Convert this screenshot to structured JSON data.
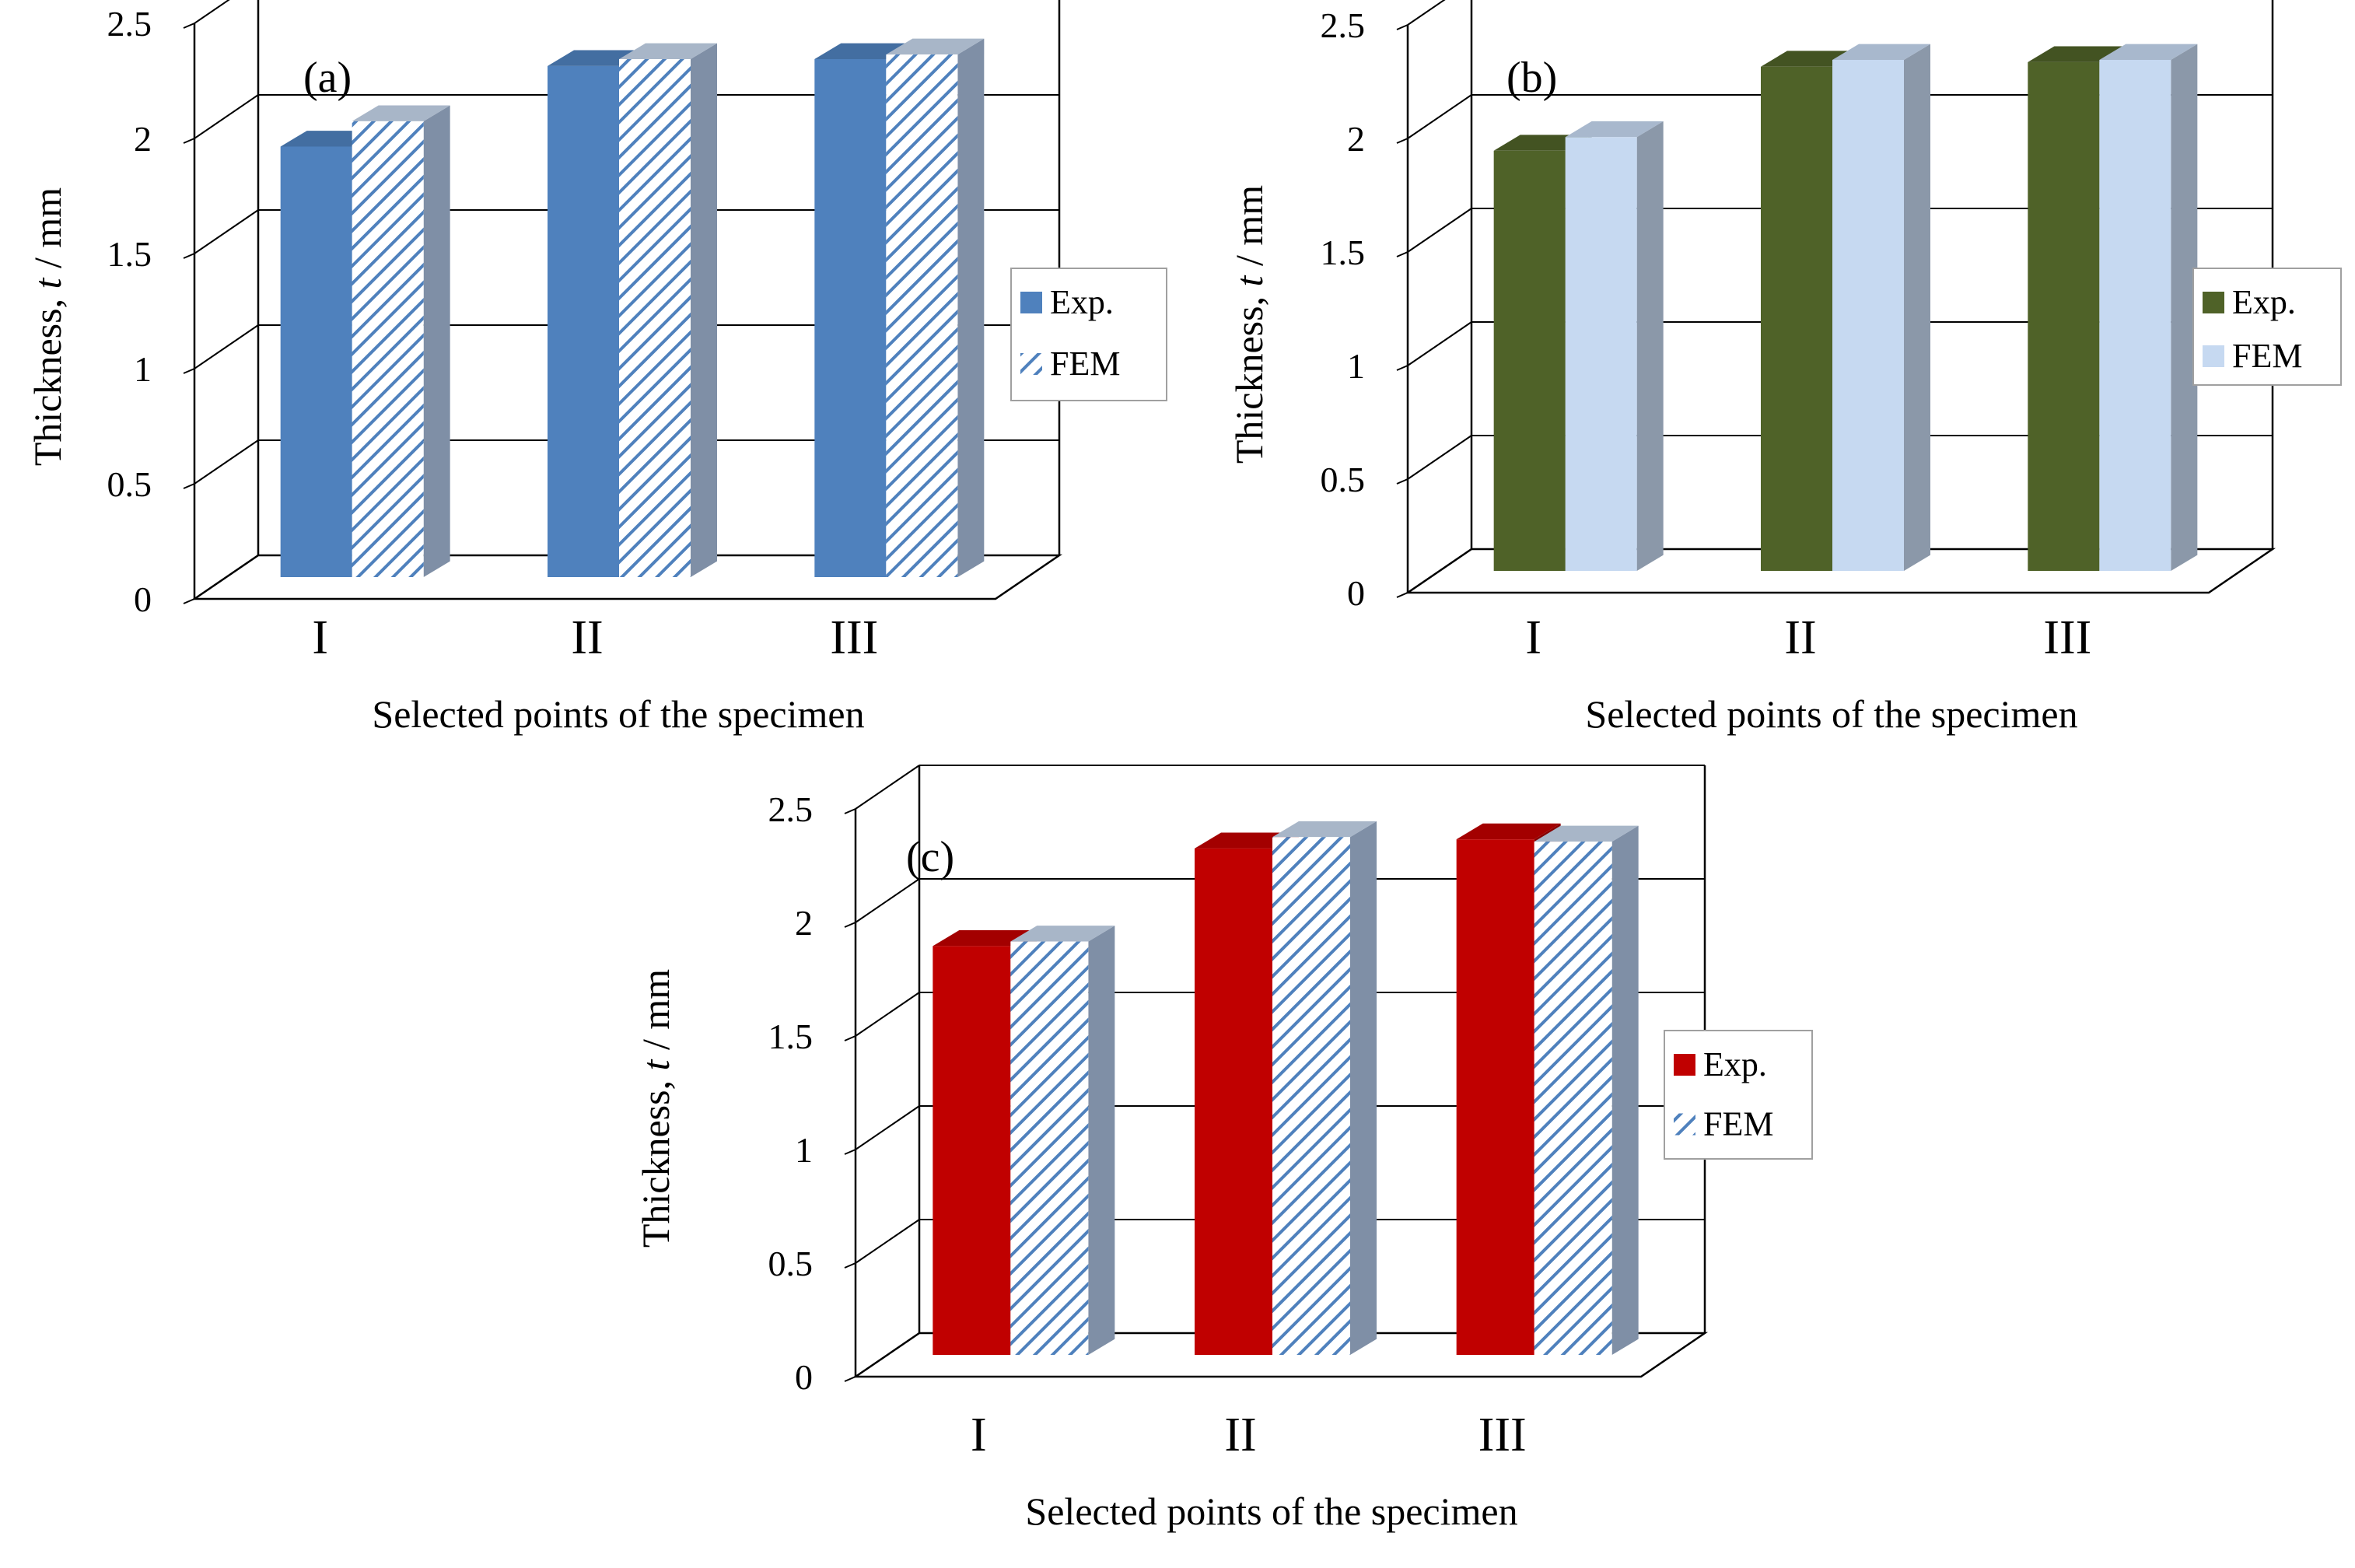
{
  "chart_data": [
    {
      "type": "bar",
      "panel_tag": "(a)",
      "title": "",
      "categories": [
        "I",
        "II",
        "III"
      ],
      "series": [
        {
          "name": "Exp.",
          "values": [
            1.87,
            2.22,
            2.25
          ],
          "color": "#4f81bd",
          "pattern": "solid"
        },
        {
          "name": "FEM",
          "values": [
            1.98,
            2.25,
            2.27
          ],
          "color": "#4f81bd",
          "pattern": "hatch"
        }
      ],
      "xlabel": "Selected points of the specimen",
      "ylabel_parts": [
        "Thickness, ",
        "t",
        " / mm"
      ],
      "yticks": [
        "0",
        "0.5",
        "1",
        "1.5",
        "2",
        "2.5"
      ],
      "ylim": [
        0,
        2.5
      ],
      "legend": "right"
    },
    {
      "type": "bar",
      "panel_tag": "(b)",
      "title": "",
      "categories": [
        "I",
        "II",
        "III"
      ],
      "series": [
        {
          "name": "Exp.",
          "values": [
            1.85,
            2.22,
            2.24
          ],
          "color": "#4f6228",
          "pattern": "solid"
        },
        {
          "name": "FEM",
          "values": [
            1.91,
            2.25,
            2.25
          ],
          "color": "#c6d9f1",
          "pattern": "solid"
        }
      ],
      "xlabel": "Selected points of the specimen",
      "ylabel_parts": [
        "Thickness, ",
        "t",
        " / mm"
      ],
      "yticks": [
        "0",
        "0.5",
        "1",
        "1.5",
        "2",
        "2.5"
      ],
      "ylim": [
        0,
        2.5
      ],
      "legend": "right"
    },
    {
      "type": "bar",
      "panel_tag": "(c)",
      "title": "",
      "categories": [
        "I",
        "II",
        "III"
      ],
      "series": [
        {
          "name": "Exp.",
          "values": [
            1.8,
            2.23,
            2.27
          ],
          "color": "#c00000",
          "pattern": "solid"
        },
        {
          "name": "FEM",
          "values": [
            1.82,
            2.28,
            2.26
          ],
          "color": "#4f81bd",
          "pattern": "hatch"
        }
      ],
      "xlabel": "Selected points of the specimen",
      "ylabel_parts": [
        "Thickness, ",
        "t",
        " / mm"
      ],
      "yticks": [
        "0",
        "0.5",
        "1",
        "1.5",
        "2",
        "2.5"
      ],
      "ylim": [
        0,
        2.5
      ],
      "legend": "right"
    }
  ]
}
